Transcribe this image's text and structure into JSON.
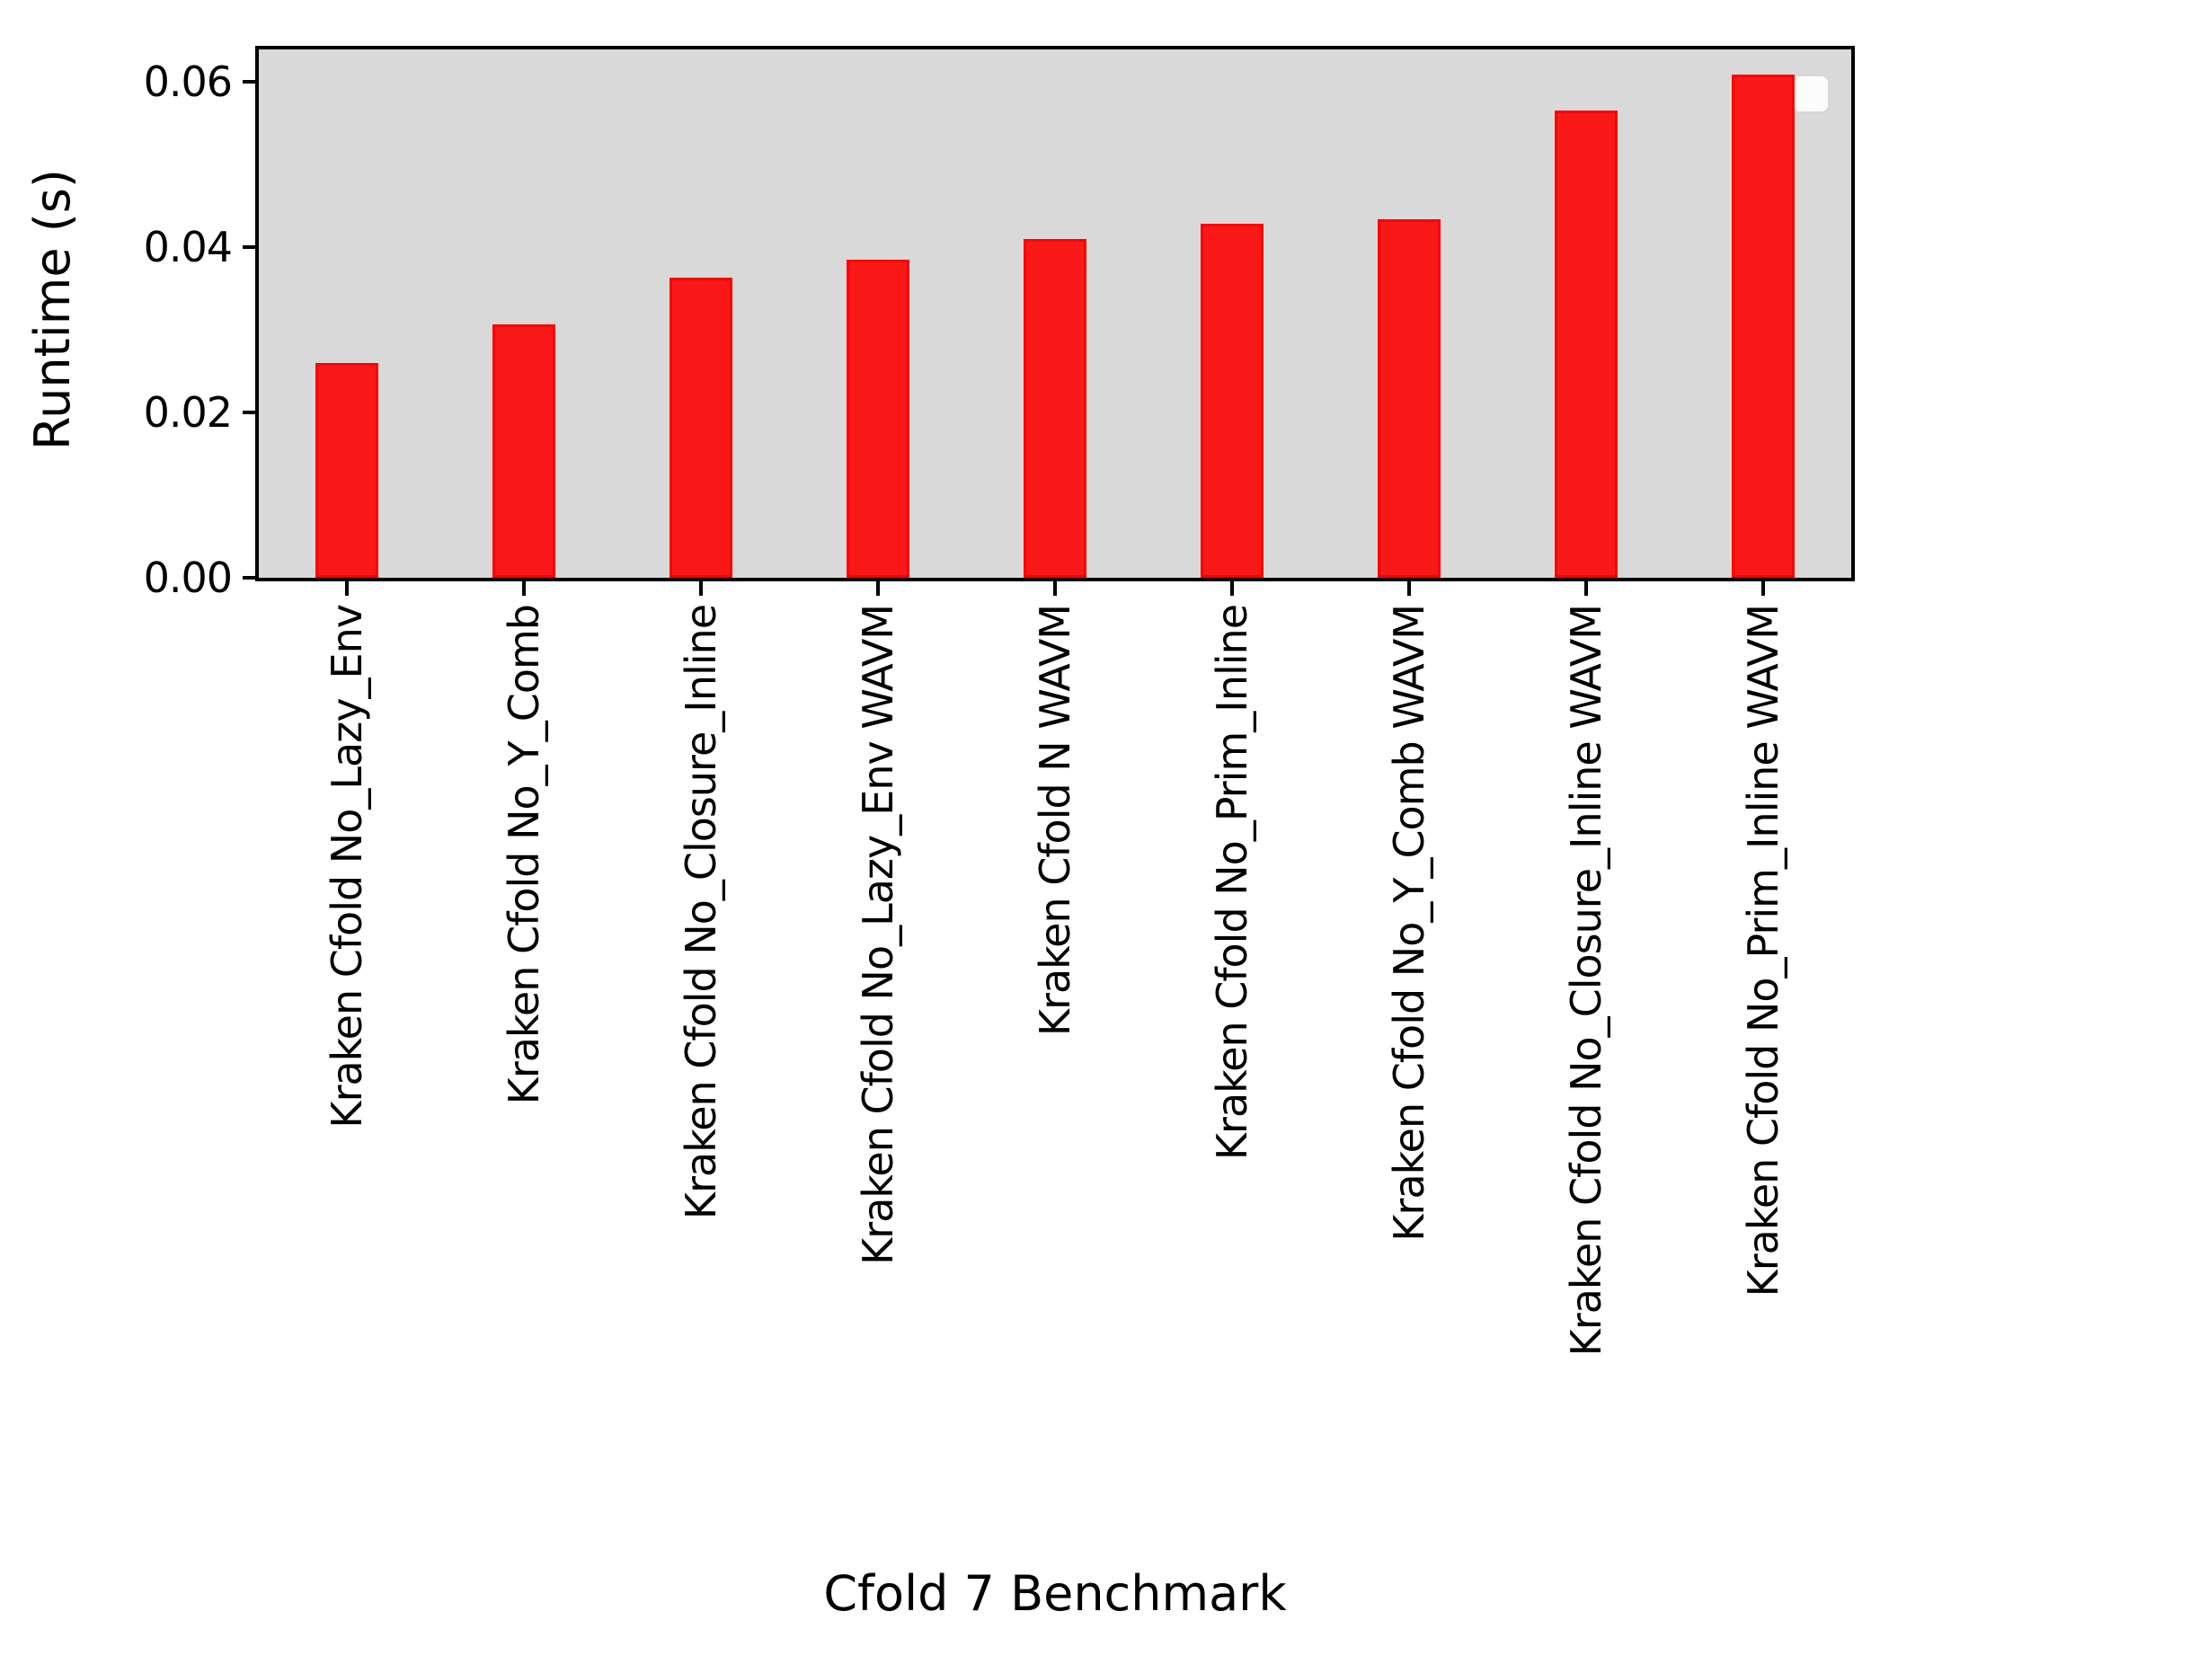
{
  "chart_data": {
    "type": "bar",
    "title": "",
    "xlabel": "Cfold 7 Benchmark",
    "ylabel": "Runtime (s)",
    "categories": [
      "Kraken Cfold No_Lazy_Env",
      "Kraken Cfold No_Y_Comb",
      "Kraken Cfold No_Closure_Inline",
      "Kraken Cfold No_Lazy_Env WAVM",
      "Kraken Cfold N WAVM",
      "Kraken Cfold No_Prim_Inline",
      "Kraken Cfold No_Y_Comb WAVM",
      "Kraken Cfold No_Closure_Inline WAVM",
      "Kraken Cfold No_Prim_Inline WAVM"
    ],
    "values": [
      0.026,
      0.0306,
      0.0363,
      0.0385,
      0.041,
      0.0428,
      0.0434,
      0.0565,
      0.0609
    ],
    "ylim": [
      0,
      0.0639
    ],
    "ytick_values": [
      0,
      0.02,
      0.04,
      0.06
    ],
    "ytick_labels": [
      "0.00",
      "0.02",
      "0.04",
      "0.06"
    ],
    "grid": false,
    "legend": {
      "visible": true,
      "entries": [],
      "position": "upper right"
    },
    "colors": {
      "bar_face": "#fa1919",
      "bar_edge": "#ff0000",
      "plot_background": "#d9d9d9",
      "figure_background": "#ffffff",
      "text": "#000000"
    }
  }
}
